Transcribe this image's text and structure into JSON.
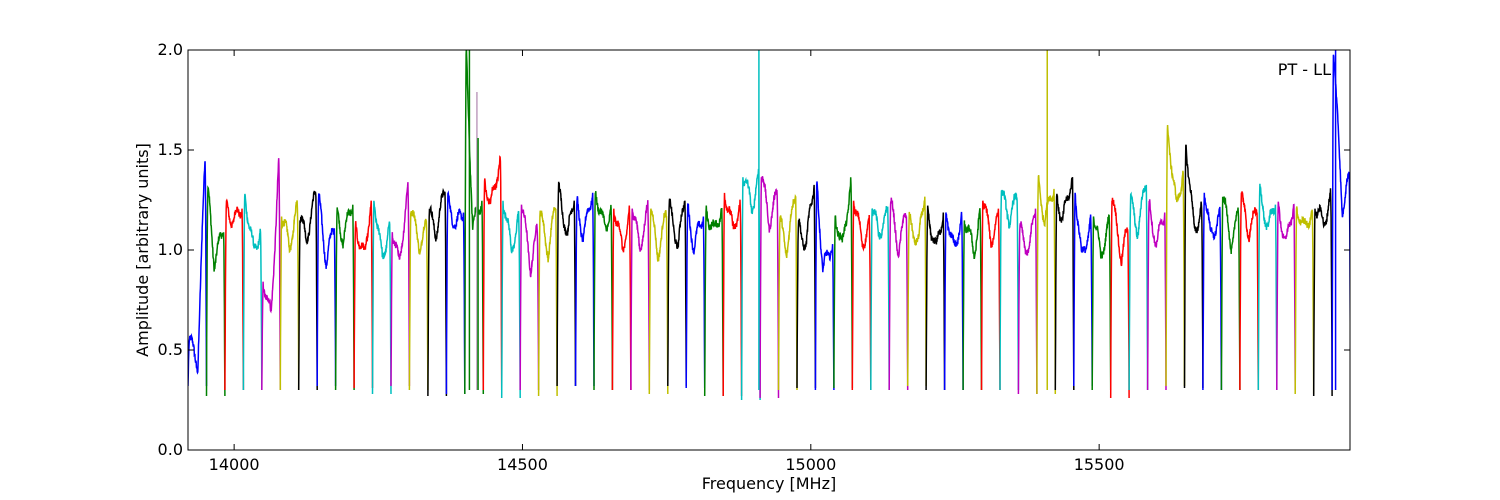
{
  "chart_data": {
    "type": "line",
    "title": "",
    "annotation": "PT - LL",
    "annotation_position": "top-right",
    "xlabel": "Frequency [MHz]",
    "ylabel": "Amplitude [arbitrary units]",
    "xlim": [
      13920,
      15935
    ],
    "ylim": [
      0.0,
      2.0
    ],
    "xticks": [
      14000,
      14500,
      15000,
      15500
    ],
    "xtick_labels": [
      "14000",
      "14500",
      "15000",
      "15500"
    ],
    "yticks": [
      0.0,
      0.5,
      1.0,
      1.5,
      2.0
    ],
    "ytick_labels": [
      "0.0",
      "0.5",
      "1.0",
      "1.5",
      "2.0"
    ],
    "grid": false,
    "legend": "none",
    "color_cycle": [
      "#0000ff",
      "#008000",
      "#ff0000",
      "#00bfbf",
      "#bf00bf",
      "#bfbf00",
      "#000000"
    ],
    "channel_width_mhz": 32,
    "channels": [
      {
        "start": 13920,
        "left": 0.55,
        "right": 1.46,
        "min": 0.32,
        "color": "#0000ff"
      },
      {
        "start": 13952,
        "left": 1.3,
        "right": 1.1,
        "min": 0.27,
        "color": "#008000"
      },
      {
        "start": 13984,
        "left": 1.22,
        "right": 1.22,
        "min": 0.3,
        "color": "#ff0000"
      },
      {
        "start": 14016,
        "left": 1.28,
        "right": 1.1,
        "min": 0.3,
        "color": "#00bfbf"
      },
      {
        "start": 14048,
        "left": 0.85,
        "right": 1.44,
        "min": 0.3,
        "color": "#bf00bf"
      },
      {
        "start": 14080,
        "left": 1.18,
        "right": 1.22,
        "min": 0.3,
        "color": "#bfbf00"
      },
      {
        "start": 14112,
        "left": 1.16,
        "right": 1.28,
        "min": 0.3,
        "color": "#000000"
      },
      {
        "start": 14144,
        "left": 1.26,
        "right": 1.12,
        "min": 0.32,
        "color": "#0000ff"
      },
      {
        "start": 14176,
        "left": 1.18,
        "right": 1.24,
        "min": 0.3,
        "color": "#008000"
      },
      {
        "start": 14208,
        "left": 1.12,
        "right": 1.26,
        "min": 0.31,
        "color": "#ff0000"
      },
      {
        "start": 14240,
        "left": 1.26,
        "right": 1.14,
        "min": 0.28,
        "color": "#00bfbf"
      },
      {
        "start": 14272,
        "left": 1.1,
        "right": 1.3,
        "min": 0.32,
        "color": "#bf00bf"
      },
      {
        "start": 14304,
        "left": 1.2,
        "right": 1.12,
        "min": 0.3,
        "color": "#bfbf00"
      },
      {
        "start": 14336,
        "left": 1.18,
        "right": 1.3,
        "min": 0.27,
        "color": "#000000"
      },
      {
        "start": 14368,
        "left": 1.24,
        "right": 1.2,
        "min": 0.28,
        "color": "#0000ff"
      },
      {
        "start": 14400,
        "left": 2.0,
        "right": 1.26,
        "min": 0.28,
        "color": "#008000"
      },
      {
        "start": 14432,
        "left": 1.36,
        "right": 1.46,
        "min": 0.3,
        "color": "#ff0000"
      },
      {
        "start": 14464,
        "left": 1.26,
        "right": 1.16,
        "min": 0.26,
        "color": "#00bfbf"
      },
      {
        "start": 14496,
        "left": 1.24,
        "right": 1.1,
        "min": 0.3,
        "color": "#bf00bf"
      },
      {
        "start": 14528,
        "left": 1.18,
        "right": 1.22,
        "min": 0.27,
        "color": "#bfbf00"
      },
      {
        "start": 14560,
        "left": 1.3,
        "right": 1.26,
        "min": 0.32,
        "color": "#000000"
      },
      {
        "start": 14592,
        "left": 1.24,
        "right": 1.3,
        "min": 0.32,
        "color": "#0000ff"
      },
      {
        "start": 14624,
        "left": 1.3,
        "right": 1.22,
        "min": 0.3,
        "color": "#008000"
      },
      {
        "start": 14656,
        "left": 1.22,
        "right": 1.18,
        "min": 0.3,
        "color": "#ff0000"
      },
      {
        "start": 14688,
        "left": 1.22,
        "right": 1.2,
        "min": 0.3,
        "color": "#bf00bf"
      },
      {
        "start": 14720,
        "left": 1.2,
        "right": 1.18,
        "min": 0.28,
        "color": "#bfbf00"
      },
      {
        "start": 14752,
        "left": 1.22,
        "right": 1.26,
        "min": 0.32,
        "color": "#000000"
      },
      {
        "start": 14784,
        "left": 1.2,
        "right": 1.18,
        "min": 0.31,
        "color": "#0000ff"
      },
      {
        "start": 14816,
        "left": 1.2,
        "right": 1.22,
        "min": 0.27,
        "color": "#008000"
      },
      {
        "start": 14848,
        "left": 1.3,
        "right": 1.22,
        "min": 0.27,
        "color": "#ff0000"
      },
      {
        "start": 14880,
        "left": 1.38,
        "right": 1.36,
        "min": 0.25,
        "color": "#00bfbf"
      },
      {
        "start": 14912,
        "left": 1.38,
        "right": 1.28,
        "min": 0.26,
        "color": "#bf00bf"
      },
      {
        "start": 14944,
        "left": 1.14,
        "right": 1.28,
        "min": 0.3,
        "color": "#bfbf00"
      },
      {
        "start": 14976,
        "left": 1.12,
        "right": 1.34,
        "min": 0.31,
        "color": "#000000"
      },
      {
        "start": 15008,
        "left": 1.34,
        "right": 1.04,
        "min": 0.3,
        "color": "#0000ff"
      },
      {
        "start": 15040,
        "left": 1.18,
        "right": 1.34,
        "min": 0.31,
        "color": "#008000"
      },
      {
        "start": 15072,
        "left": 1.26,
        "right": 1.12,
        "min": 0.3,
        "color": "#ff0000"
      },
      {
        "start": 15104,
        "left": 1.22,
        "right": 1.18,
        "min": 0.3,
        "color": "#00bfbf"
      },
      {
        "start": 15136,
        "left": 1.24,
        "right": 1.18,
        "min": 0.3,
        "color": "#bf00bf"
      },
      {
        "start": 15168,
        "left": 1.14,
        "right": 1.28,
        "min": 0.32,
        "color": "#bfbf00"
      },
      {
        "start": 15200,
        "left": 1.18,
        "right": 1.2,
        "min": 0.3,
        "color": "#000000"
      },
      {
        "start": 15232,
        "left": 1.2,
        "right": 1.18,
        "min": 0.3,
        "color": "#0000ff"
      },
      {
        "start": 15264,
        "left": 1.16,
        "right": 1.18,
        "min": 0.3,
        "color": "#008000"
      },
      {
        "start": 15296,
        "left": 1.26,
        "right": 1.16,
        "min": 0.3,
        "color": "#ff0000"
      },
      {
        "start": 15328,
        "left": 1.28,
        "right": 1.26,
        "min": 0.3,
        "color": "#00bfbf"
      },
      {
        "start": 15360,
        "left": 1.1,
        "right": 1.22,
        "min": 0.28,
        "color": "#bf00bf"
      },
      {
        "start": 15392,
        "left": 1.34,
        "right": 1.32,
        "min": 0.28,
        "color": "#bfbf00"
      },
      {
        "start": 15424,
        "left": 1.28,
        "right": 1.38,
        "min": 0.3,
        "color": "#000000"
      },
      {
        "start": 15456,
        "left": 1.3,
        "right": 1.14,
        "min": 0.32,
        "color": "#0000ff"
      },
      {
        "start": 15488,
        "left": 1.18,
        "right": 1.14,
        "min": 0.3,
        "color": "#008000"
      },
      {
        "start": 15520,
        "left": 1.26,
        "right": 1.1,
        "min": 0.26,
        "color": "#ff0000"
      },
      {
        "start": 15552,
        "left": 1.24,
        "right": 1.34,
        "min": 0.3,
        "color": "#00bfbf"
      },
      {
        "start": 15584,
        "left": 1.22,
        "right": 1.2,
        "min": 0.3,
        "color": "#bf00bf"
      },
      {
        "start": 15616,
        "left": 1.62,
        "right": 1.4,
        "min": 0.32,
        "color": "#bfbf00"
      },
      {
        "start": 15648,
        "left": 1.54,
        "right": 1.22,
        "min": 0.31,
        "color": "#000000"
      },
      {
        "start": 15680,
        "left": 1.3,
        "right": 1.16,
        "min": 0.3,
        "color": "#0000ff"
      },
      {
        "start": 15712,
        "left": 1.28,
        "right": 1.18,
        "min": 0.3,
        "color": "#008000"
      },
      {
        "start": 15744,
        "left": 1.26,
        "right": 1.2,
        "min": 0.3,
        "color": "#ff0000"
      },
      {
        "start": 15776,
        "left": 1.28,
        "right": 1.24,
        "min": 0.3,
        "color": "#00bfbf"
      },
      {
        "start": 15808,
        "left": 1.22,
        "right": 1.24,
        "min": 0.3,
        "color": "#bf00bf"
      },
      {
        "start": 15840,
        "left": 1.22,
        "right": 1.2,
        "min": 0.28,
        "color": "#bfbf00"
      },
      {
        "start": 15872,
        "left": 1.22,
        "right": 1.26,
        "min": 0.27,
        "color": "#000000"
      },
      {
        "start": 15904,
        "left": 2.0,
        "right": 1.36,
        "min": 0.3,
        "color": "#0000ff"
      }
    ],
    "spikes": [
      {
        "x": 14408,
        "y": 2.0,
        "color": "#008000"
      },
      {
        "x": 14421,
        "y": 1.79,
        "color": "#bf9fbf"
      },
      {
        "x": 14423,
        "y": 1.56,
        "color": "#008000"
      },
      {
        "x": 14910,
        "y": 2.0,
        "color": "#00bfbf"
      },
      {
        "x": 15410,
        "y": 2.0,
        "color": "#bfbf00"
      },
      {
        "x": 15910,
        "y": 2.0,
        "color": "#0000ff"
      }
    ]
  }
}
